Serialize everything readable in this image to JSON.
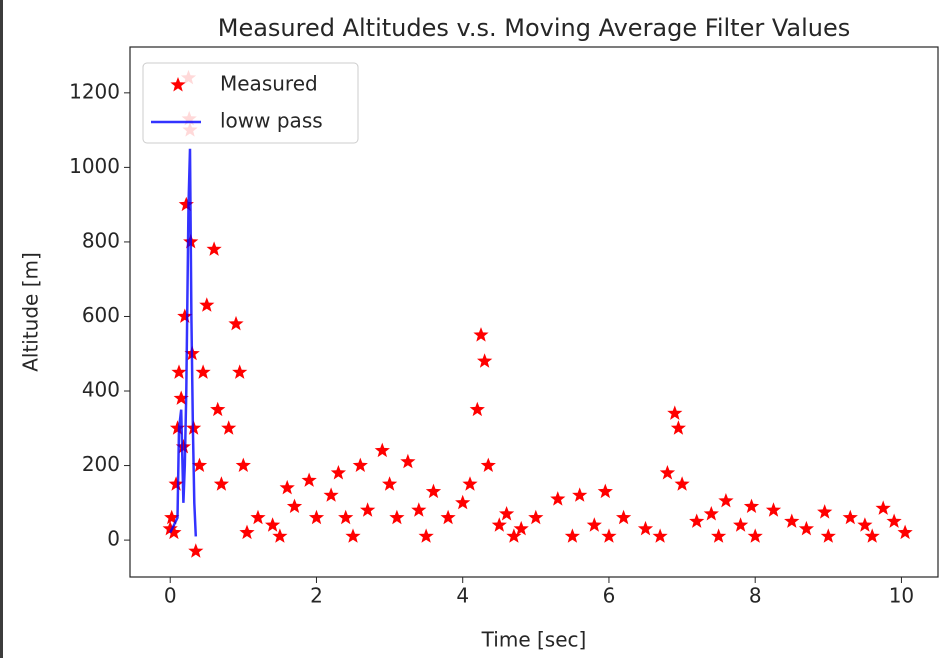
{
  "chart_data": {
    "type": "scatter",
    "title": "Measured Altitudes v.s. Moving Average Filter Values",
    "x_label": "Time [sec]",
    "y_label": "Altitude [m]",
    "xlim": [
      -0.55,
      10.5
    ],
    "ylim": [
      -99,
      1323
    ],
    "xticks": [
      0,
      2,
      4,
      6,
      8,
      10
    ],
    "yticks": [
      0,
      200,
      400,
      600,
      800,
      1000,
      1200
    ],
    "legend": "upper left",
    "series": [
      {
        "name": "Measured",
        "type": "scatter",
        "color": "#ff0000",
        "x": [
          0.0,
          0.02,
          0.05,
          0.08,
          0.1,
          0.12,
          0.15,
          0.18,
          0.2,
          0.22,
          0.25,
          0.26,
          0.27,
          0.28,
          0.3,
          0.32,
          0.35,
          0.4,
          0.45,
          0.5,
          0.6,
          0.65,
          0.7,
          0.8,
          0.9,
          0.95,
          1.0,
          1.05,
          1.2,
          1.4,
          1.6,
          1.7,
          1.9,
          2.0,
          2.2,
          2.3,
          2.4,
          2.6,
          2.7,
          2.9,
          3.0,
          3.1,
          3.25,
          3.4,
          3.6,
          3.8,
          4.0,
          4.1,
          4.2,
          4.25,
          4.3,
          4.35,
          4.5,
          4.6,
          4.8,
          5.0,
          5.3,
          5.6,
          5.8,
          5.95,
          6.2,
          6.5,
          6.8,
          6.9,
          6.95,
          7.0,
          7.2,
          7.4,
          7.6,
          7.8,
          7.95,
          8.25,
          8.5,
          8.7,
          8.95,
          9.3,
          9.5,
          9.75,
          9.9,
          10.05,
          1.5,
          2.5,
          3.5,
          4.7,
          5.5,
          6.0,
          6.7,
          7.5,
          8.0,
          9.0,
          9.6
        ],
        "y": [
          30,
          60,
          20,
          150,
          300,
          450,
          380,
          250,
          600,
          900,
          1240,
          1130,
          1100,
          800,
          500,
          300,
          -30,
          200,
          450,
          630,
          780,
          350,
          150,
          300,
          580,
          450,
          200,
          20,
          60,
          40,
          140,
          90,
          160,
          60,
          120,
          180,
          60,
          200,
          80,
          240,
          150,
          60,
          210,
          80,
          130,
          60,
          100,
          150,
          350,
          550,
          480,
          200,
          40,
          70,
          30,
          60,
          110,
          120,
          40,
          130,
          60,
          30,
          180,
          340,
          300,
          150,
          50,
          70,
          105,
          40,
          90,
          80,
          50,
          30,
          75,
          60,
          40,
          85,
          50,
          20,
          10,
          10,
          10,
          10,
          10,
          10,
          10,
          10,
          10,
          10,
          10
        ]
      },
      {
        "name": "loww pass",
        "type": "line",
        "color": "#0000ff",
        "x": [
          0.0,
          0.05,
          0.1,
          0.12,
          0.15,
          0.18,
          0.2,
          0.22,
          0.25,
          0.27,
          0.29,
          0.31,
          0.33,
          0.35
        ],
        "y": [
          20,
          40,
          60,
          300,
          350,
          100,
          200,
          400,
          900,
          1050,
          600,
          300,
          100,
          10
        ]
      }
    ]
  }
}
